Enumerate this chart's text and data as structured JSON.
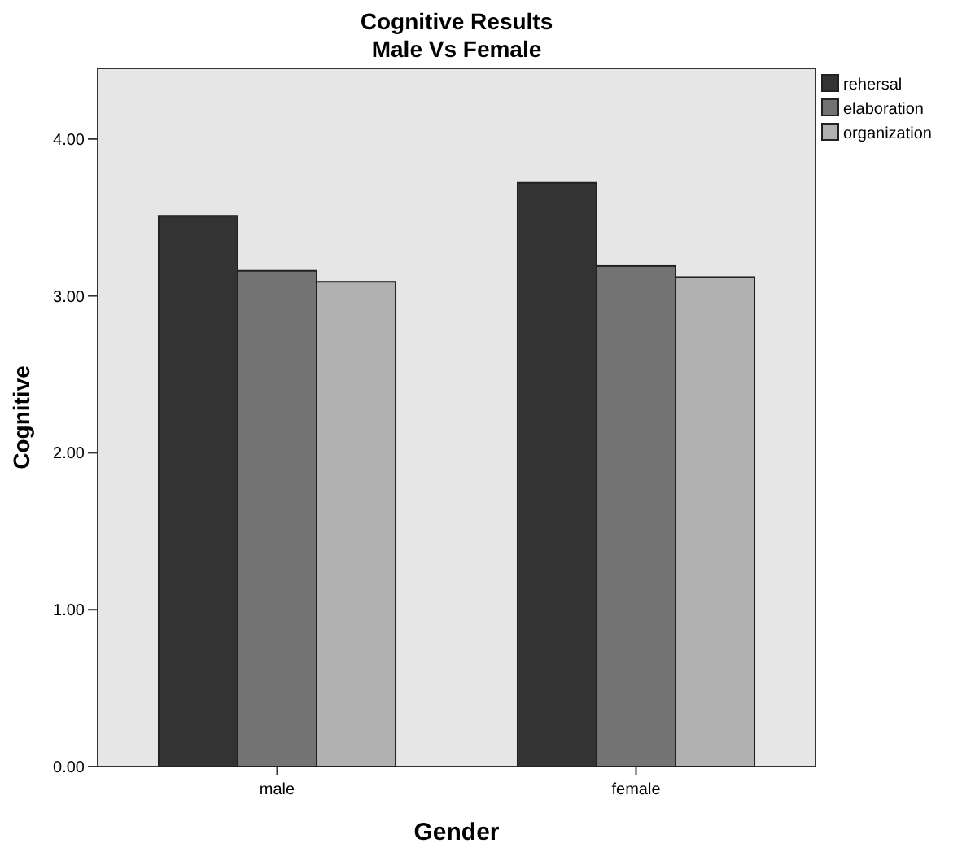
{
  "chart_data": {
    "type": "bar",
    "title": "Cognitive Results",
    "subtitle": "Male Vs Female",
    "xlabel": "Gender",
    "ylabel": "Cognitive",
    "categories": [
      "male",
      "female"
    ],
    "series": [
      {
        "name": "rehersal",
        "color": "#333333",
        "values": [
          3.51,
          3.72
        ]
      },
      {
        "name": "elaboration",
        "color": "#737373",
        "values": [
          3.16,
          3.19
        ]
      },
      {
        "name": "organization",
        "color": "#b0b0b0",
        "values": [
          3.09,
          3.12
        ]
      }
    ],
    "ylim": [
      0,
      4.45
    ],
    "yticks": [
      {
        "value": 0,
        "label": "0.00"
      },
      {
        "value": 1,
        "label": "1.00"
      },
      {
        "value": 2,
        "label": "2.00"
      },
      {
        "value": 3,
        "label": "3.00"
      },
      {
        "value": 4,
        "label": "4.00"
      }
    ],
    "grid": false,
    "legend": "top right"
  }
}
